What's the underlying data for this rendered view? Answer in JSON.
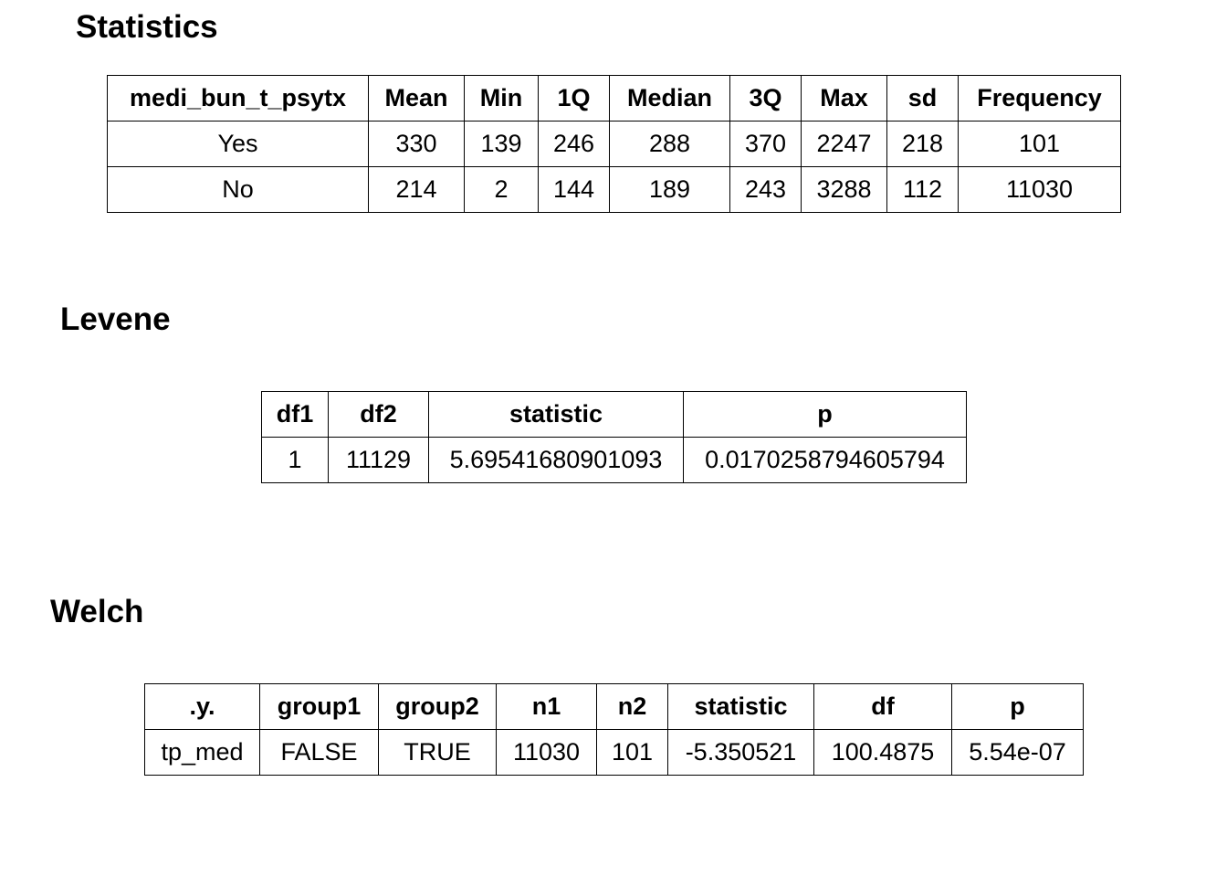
{
  "statistics": {
    "title": "Statistics",
    "header": [
      "medi_bun_t_psytx",
      "Mean",
      "Min",
      "1Q",
      "Median",
      "3Q",
      "Max",
      "sd",
      "Frequency"
    ],
    "rows": [
      [
        "Yes",
        "330",
        "139",
        "246",
        "288",
        "370",
        "2247",
        "218",
        "101"
      ],
      [
        "No",
        "214",
        "2",
        "144",
        "189",
        "243",
        "3288",
        "112",
        "11030"
      ]
    ]
  },
  "levene": {
    "title": "Levene",
    "header": [
      "df1",
      "df2",
      "statistic",
      "p"
    ],
    "rows": [
      [
        "1",
        "11129",
        "5.69541680901093",
        "0.0170258794605794"
      ]
    ]
  },
  "welch": {
    "title": "Welch",
    "header": [
      ".y.",
      "group1",
      "group2",
      "n1",
      "n2",
      "statistic",
      "df",
      "p"
    ],
    "rows": [
      [
        "tp_med",
        "FALSE",
        "TRUE",
        "11030",
        "101",
        "-5.350521",
        "100.4875",
        "5.54e-07"
      ]
    ]
  }
}
